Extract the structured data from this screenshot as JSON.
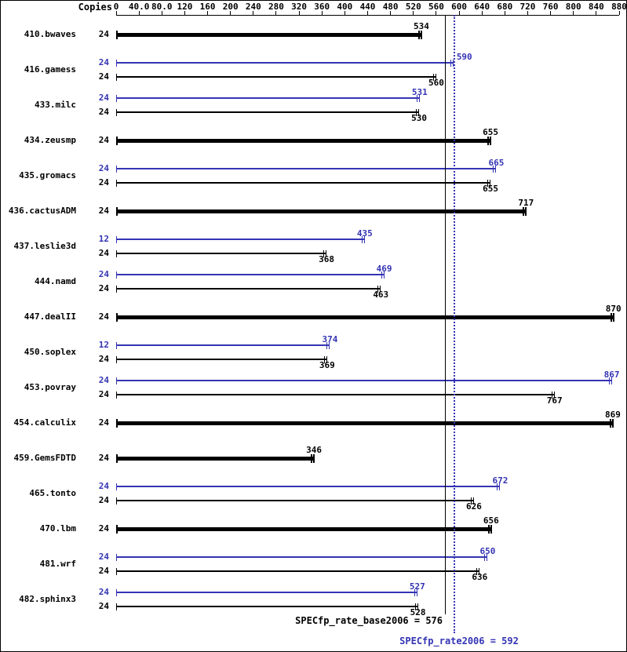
{
  "header": {
    "copies_column_label": "Copies"
  },
  "chart_data": {
    "type": "bar",
    "orientation": "horizontal",
    "axis": {
      "position": "top",
      "min": 0,
      "max": 880,
      "grid": false,
      "tick_values": [
        0,
        40,
        80,
        120,
        160,
        200,
        240,
        280,
        320,
        360,
        400,
        440,
        480,
        520,
        560,
        600,
        640,
        680,
        720,
        760,
        800,
        840,
        880
      ],
      "tick_labels": [
        "0",
        "40.0",
        "80.0",
        "120",
        "160",
        "200",
        "240",
        "280",
        "320",
        "360",
        "400",
        "440",
        "480",
        "520",
        "560",
        "600",
        "640",
        "680",
        "720",
        "760",
        "800",
        "840",
        "880"
      ]
    },
    "colors": {
      "base": "#000000",
      "peak": "#3434b4"
    },
    "benchmarks": [
      {
        "name": "410.bwaves",
        "bars": [
          {
            "kind": "base-only",
            "copies": "24",
            "value": 534
          }
        ]
      },
      {
        "name": "416.gamess",
        "bars": [
          {
            "kind": "peak",
            "copies": "24",
            "value": 590,
            "label_dx": 14
          },
          {
            "kind": "base",
            "copies": "24",
            "value": 560
          }
        ]
      },
      {
        "name": "433.milc",
        "bars": [
          {
            "kind": "peak",
            "copies": "24",
            "value": 531
          },
          {
            "kind": "base",
            "copies": "24",
            "value": 530
          }
        ]
      },
      {
        "name": "434.zeusmp",
        "bars": [
          {
            "kind": "base-only",
            "copies": "24",
            "value": 655
          }
        ]
      },
      {
        "name": "435.gromacs",
        "bars": [
          {
            "kind": "peak",
            "copies": "24",
            "value": 665
          },
          {
            "kind": "base",
            "copies": "24",
            "value": 655
          }
        ]
      },
      {
        "name": "436.cactusADM",
        "bars": [
          {
            "kind": "base-only",
            "copies": "24",
            "value": 717
          }
        ]
      },
      {
        "name": "437.leslie3d",
        "bars": [
          {
            "kind": "peak",
            "copies": "12",
            "value": 435
          },
          {
            "kind": "base",
            "copies": "24",
            "value": 368
          }
        ]
      },
      {
        "name": "444.namd",
        "bars": [
          {
            "kind": "peak",
            "copies": "24",
            "value": 469
          },
          {
            "kind": "base",
            "copies": "24",
            "value": 463
          }
        ]
      },
      {
        "name": "447.dealII",
        "bars": [
          {
            "kind": "base-only",
            "copies": "24",
            "value": 870
          }
        ]
      },
      {
        "name": "450.soplex",
        "bars": [
          {
            "kind": "peak",
            "copies": "12",
            "value": 374
          },
          {
            "kind": "base",
            "copies": "24",
            "value": 369
          }
        ]
      },
      {
        "name": "453.povray",
        "bars": [
          {
            "kind": "peak",
            "copies": "24",
            "value": 867
          },
          {
            "kind": "base",
            "copies": "24",
            "value": 767
          }
        ]
      },
      {
        "name": "454.calculix",
        "bars": [
          {
            "kind": "base-only",
            "copies": "24",
            "value": 869
          }
        ]
      },
      {
        "name": "459.GemsFDTD",
        "bars": [
          {
            "kind": "base-only",
            "copies": "24",
            "value": 346
          }
        ]
      },
      {
        "name": "465.tonto",
        "bars": [
          {
            "kind": "peak",
            "copies": "24",
            "value": 672
          },
          {
            "kind": "base",
            "copies": "24",
            "value": 626
          }
        ]
      },
      {
        "name": "470.lbm",
        "bars": [
          {
            "kind": "base-only",
            "copies": "24",
            "value": 656
          }
        ]
      },
      {
        "name": "481.wrf",
        "bars": [
          {
            "kind": "peak",
            "copies": "24",
            "value": 650
          },
          {
            "kind": "base",
            "copies": "24",
            "value": 636
          }
        ]
      },
      {
        "name": "482.sphinx3",
        "bars": [
          {
            "kind": "peak",
            "copies": "24",
            "value": 527
          },
          {
            "kind": "base",
            "copies": "24",
            "value": 528
          }
        ]
      }
    ],
    "reference_lines": [
      {
        "label": "SPECfp_rate_base2006 = 576",
        "value": 576,
        "color": "#000000",
        "style": "solid"
      },
      {
        "label": "SPECfp_rate2006 = 592",
        "value": 592,
        "color": "#3434b4",
        "style": "dotted"
      }
    ]
  }
}
